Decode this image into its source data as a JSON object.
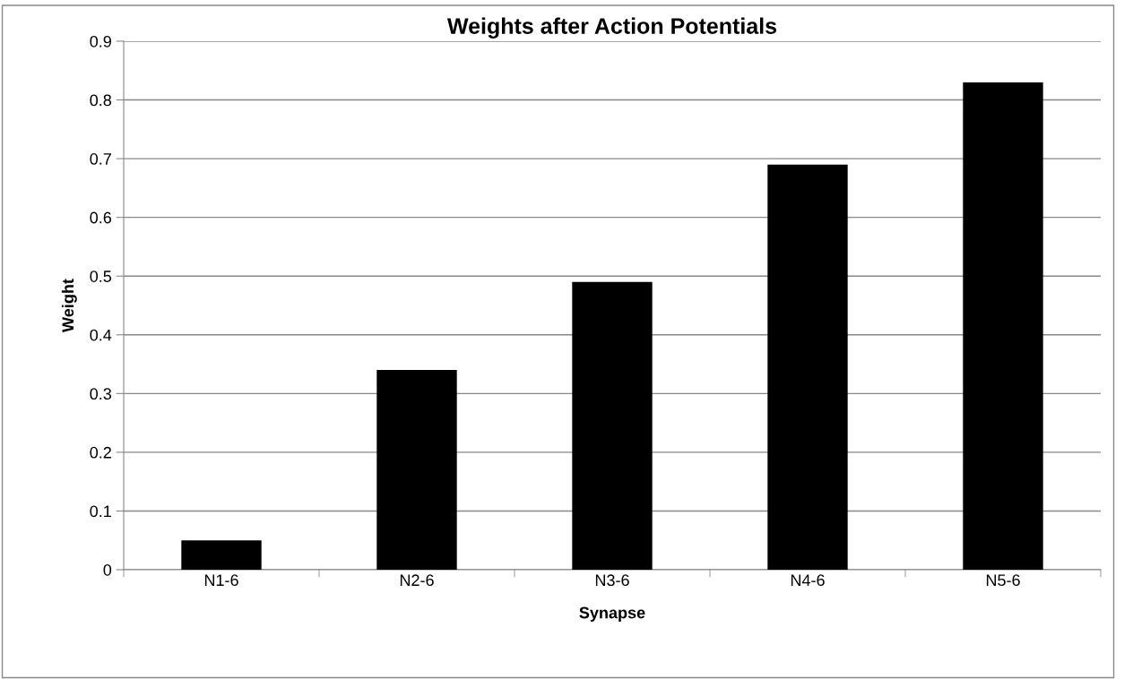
{
  "chart_data": {
    "type": "bar",
    "title": "Weights after Action Potentials",
    "xlabel": "Synapse",
    "ylabel": "Weight",
    "categories": [
      "N1-6",
      "N2-6",
      "N3-6",
      "N4-6",
      "N5-6"
    ],
    "values": [
      0.05,
      0.34,
      0.49,
      0.69,
      0.83
    ],
    "color": "#000000",
    "ylim": [
      0,
      0.9
    ],
    "yticks": [
      0,
      0.1,
      0.2,
      0.3,
      0.4,
      0.5,
      0.6,
      0.7,
      0.8,
      0.9
    ],
    "grid": "y",
    "legend": false
  }
}
